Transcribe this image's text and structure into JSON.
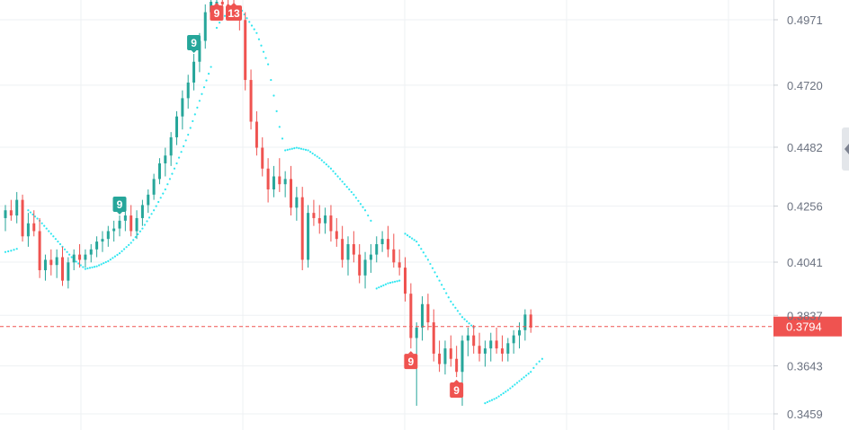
{
  "chart_data": {
    "type": "candlestick",
    "title": "",
    "xlabel": "",
    "ylabel": "",
    "y_ticks": [
      0.4971,
      0.472,
      0.4482,
      0.4256,
      0.4041,
      0.3837,
      0.3643,
      0.3459
    ],
    "ylim": [
      0.342,
      0.508
    ],
    "grid": true,
    "current_price": 0.3794,
    "current_price_label": "0.3794",
    "colors": {
      "up": "#26a69a",
      "down": "#ef5350",
      "sar": "#2ee6f0",
      "grid": "#eef0f3",
      "current_line": "#ef5350"
    },
    "ohlc": [
      [
        0.421,
        0.426,
        0.416,
        0.424
      ],
      [
        0.424,
        0.428,
        0.42,
        0.422
      ],
      [
        0.422,
        0.431,
        0.419,
        0.428
      ],
      [
        0.428,
        0.43,
        0.412,
        0.414
      ],
      [
        0.414,
        0.423,
        0.41,
        0.419
      ],
      [
        0.419,
        0.424,
        0.414,
        0.416
      ],
      [
        0.416,
        0.421,
        0.398,
        0.401
      ],
      [
        0.401,
        0.407,
        0.397,
        0.405
      ],
      [
        0.405,
        0.409,
        0.399,
        0.403
      ],
      [
        0.403,
        0.409,
        0.398,
        0.406
      ],
      [
        0.406,
        0.41,
        0.395,
        0.397
      ],
      [
        0.397,
        0.406,
        0.394,
        0.404
      ],
      [
        0.404,
        0.409,
        0.401,
        0.407
      ],
      [
        0.407,
        0.411,
        0.402,
        0.405
      ],
      [
        0.405,
        0.409,
        0.402,
        0.407
      ],
      [
        0.407,
        0.411,
        0.404,
        0.409
      ],
      [
        0.409,
        0.414,
        0.406,
        0.412
      ],
      [
        0.412,
        0.416,
        0.408,
        0.413
      ],
      [
        0.413,
        0.418,
        0.41,
        0.416
      ],
      [
        0.416,
        0.42,
        0.412,
        0.417
      ],
      [
        0.417,
        0.422,
        0.414,
        0.42
      ],
      [
        0.42,
        0.424,
        0.416,
        0.422
      ],
      [
        0.422,
        0.426,
        0.414,
        0.416
      ],
      [
        0.416,
        0.424,
        0.413,
        0.421
      ],
      [
        0.421,
        0.428,
        0.418,
        0.426
      ],
      [
        0.426,
        0.432,
        0.423,
        0.43
      ],
      [
        0.43,
        0.438,
        0.428,
        0.436
      ],
      [
        0.436,
        0.444,
        0.434,
        0.442
      ],
      [
        0.442,
        0.448,
        0.437,
        0.445
      ],
      [
        0.445,
        0.454,
        0.441,
        0.452
      ],
      [
        0.452,
        0.462,
        0.449,
        0.46
      ],
      [
        0.46,
        0.47,
        0.455,
        0.467
      ],
      [
        0.467,
        0.476,
        0.463,
        0.473
      ],
      [
        0.473,
        0.484,
        0.47,
        0.481
      ],
      [
        0.481,
        0.492,
        0.477,
        0.489
      ],
      [
        0.489,
        0.503,
        0.486,
        0.5
      ],
      [
        0.5,
        0.505,
        0.498,
        0.504
      ],
      [
        0.502,
        0.506,
        0.498,
        0.504
      ],
      [
        0.504,
        0.507,
        0.5,
        0.503
      ],
      [
        0.503,
        0.506,
        0.499,
        0.502
      ],
      [
        0.502,
        0.505,
        0.497,
        0.5
      ],
      [
        0.5,
        0.502,
        0.493,
        0.497
      ],
      [
        0.497,
        0.5,
        0.47,
        0.474
      ],
      [
        0.474,
        0.478,
        0.455,
        0.458
      ],
      [
        0.458,
        0.462,
        0.445,
        0.448
      ],
      [
        0.448,
        0.452,
        0.437,
        0.44
      ],
      [
        0.44,
        0.444,
        0.427,
        0.432
      ],
      [
        0.432,
        0.441,
        0.429,
        0.437
      ],
      [
        0.437,
        0.444,
        0.431,
        0.434
      ],
      [
        0.434,
        0.439,
        0.429,
        0.436
      ],
      [
        0.436,
        0.441,
        0.422,
        0.425
      ],
      [
        0.425,
        0.433,
        0.42,
        0.429
      ],
      [
        0.429,
        0.433,
        0.401,
        0.405
      ],
      [
        0.405,
        0.426,
        0.402,
        0.423
      ],
      [
        0.423,
        0.428,
        0.418,
        0.421
      ],
      [
        0.421,
        0.426,
        0.415,
        0.419
      ],
      [
        0.419,
        0.425,
        0.415,
        0.422
      ],
      [
        0.422,
        0.426,
        0.412,
        0.416
      ],
      [
        0.416,
        0.421,
        0.41,
        0.413
      ],
      [
        0.413,
        0.418,
        0.402,
        0.405
      ],
      [
        0.405,
        0.414,
        0.399,
        0.411
      ],
      [
        0.411,
        0.416,
        0.404,
        0.407
      ],
      [
        0.407,
        0.411,
        0.396,
        0.399
      ],
      [
        0.399,
        0.408,
        0.394,
        0.405
      ],
      [
        0.405,
        0.411,
        0.4,
        0.407
      ],
      [
        0.407,
        0.414,
        0.404,
        0.411
      ],
      [
        0.411,
        0.416,
        0.408,
        0.413
      ],
      [
        0.413,
        0.418,
        0.406,
        0.409
      ],
      [
        0.409,
        0.415,
        0.402,
        0.404
      ],
      [
        0.404,
        0.409,
        0.399,
        0.402
      ],
      [
        0.402,
        0.406,
        0.389,
        0.392
      ],
      [
        0.392,
        0.396,
        0.371,
        0.375
      ],
      [
        0.375,
        0.381,
        0.349,
        0.379
      ],
      [
        0.379,
        0.391,
        0.374,
        0.388
      ],
      [
        0.388,
        0.392,
        0.378,
        0.381
      ],
      [
        0.381,
        0.386,
        0.366,
        0.369
      ],
      [
        0.369,
        0.374,
        0.362,
        0.365
      ],
      [
        0.365,
        0.374,
        0.361,
        0.371
      ],
      [
        0.371,
        0.376,
        0.364,
        0.367
      ],
      [
        0.367,
        0.372,
        0.36,
        0.362
      ],
      [
        0.362,
        0.376,
        0.349,
        0.374
      ],
      [
        0.374,
        0.379,
        0.368,
        0.376
      ],
      [
        0.376,
        0.38,
        0.369,
        0.372
      ],
      [
        0.372,
        0.377,
        0.366,
        0.369
      ],
      [
        0.369,
        0.374,
        0.364,
        0.371
      ],
      [
        0.371,
        0.377,
        0.366,
        0.374
      ],
      [
        0.374,
        0.379,
        0.369,
        0.371
      ],
      [
        0.371,
        0.376,
        0.366,
        0.369
      ],
      [
        0.369,
        0.375,
        0.366,
        0.373
      ],
      [
        0.373,
        0.378,
        0.369,
        0.376
      ],
      [
        0.376,
        0.381,
        0.371,
        0.378
      ],
      [
        0.378,
        0.386,
        0.374,
        0.384
      ],
      [
        0.384,
        0.386,
        0.377,
        0.379
      ]
    ],
    "sar": [
      [
        0,
        0.408
      ],
      [
        1,
        0.4085
      ],
      [
        2,
        0.4092
      ],
      [
        4,
        0.424
      ],
      [
        6,
        0.42
      ],
      [
        8,
        0.415
      ],
      [
        10,
        0.41
      ],
      [
        12,
        0.405
      ],
      [
        14,
        0.4015
      ],
      [
        16,
        0.4025
      ],
      [
        18,
        0.4045
      ],
      [
        20,
        0.4075
      ],
      [
        22,
        0.4115
      ],
      [
        24,
        0.417
      ],
      [
        26,
        0.424
      ],
      [
        28,
        0.432
      ],
      [
        30,
        0.442
      ],
      [
        32,
        0.453
      ],
      [
        34,
        0.466
      ],
      [
        36,
        0.479
      ],
      [
        37,
        0.494
      ],
      [
        38,
        0.498
      ],
      [
        41,
        0.502
      ],
      [
        44,
        0.492
      ],
      [
        46,
        0.48
      ],
      [
        47,
        0.468
      ],
      [
        48,
        0.456
      ],
      [
        49,
        0.447
      ],
      [
        51,
        0.448
      ],
      [
        53,
        0.447
      ],
      [
        55,
        0.444
      ],
      [
        57,
        0.44
      ],
      [
        59,
        0.435
      ],
      [
        61,
        0.43
      ],
      [
        63,
        0.424
      ],
      [
        64,
        0.42
      ],
      [
        65,
        0.394
      ],
      [
        67,
        0.396
      ],
      [
        69,
        0.397
      ],
      [
        70,
        0.415
      ],
      [
        72,
        0.412
      ],
      [
        74,
        0.405
      ],
      [
        76,
        0.397
      ],
      [
        78,
        0.389
      ],
      [
        80,
        0.383
      ],
      [
        82,
        0.379
      ],
      [
        84,
        0.35
      ],
      [
        86,
        0.352
      ],
      [
        88,
        0.355
      ],
      [
        90,
        0.3585
      ],
      [
        92,
        0.362
      ],
      [
        93,
        0.365
      ],
      [
        94,
        0.367
      ]
    ],
    "markers": [
      {
        "index": 20,
        "label": "9",
        "side": "above",
        "color": "#26a69a"
      },
      {
        "index": 33,
        "label": "9",
        "side": "above",
        "color": "#26a69a"
      },
      {
        "index": 36,
        "label": "13",
        "side": "above",
        "color": "#26a69a"
      },
      {
        "index": 37,
        "label": "9",
        "side": "below_top",
        "color": "#ef5350"
      },
      {
        "index": 40,
        "label": "13",
        "side": "below_top",
        "color": "#ef5350"
      },
      {
        "index": 71,
        "label": "9",
        "side": "below",
        "color": "#ef5350"
      },
      {
        "index": 79,
        "label": "9",
        "side": "below",
        "color": "#ef5350"
      }
    ]
  }
}
